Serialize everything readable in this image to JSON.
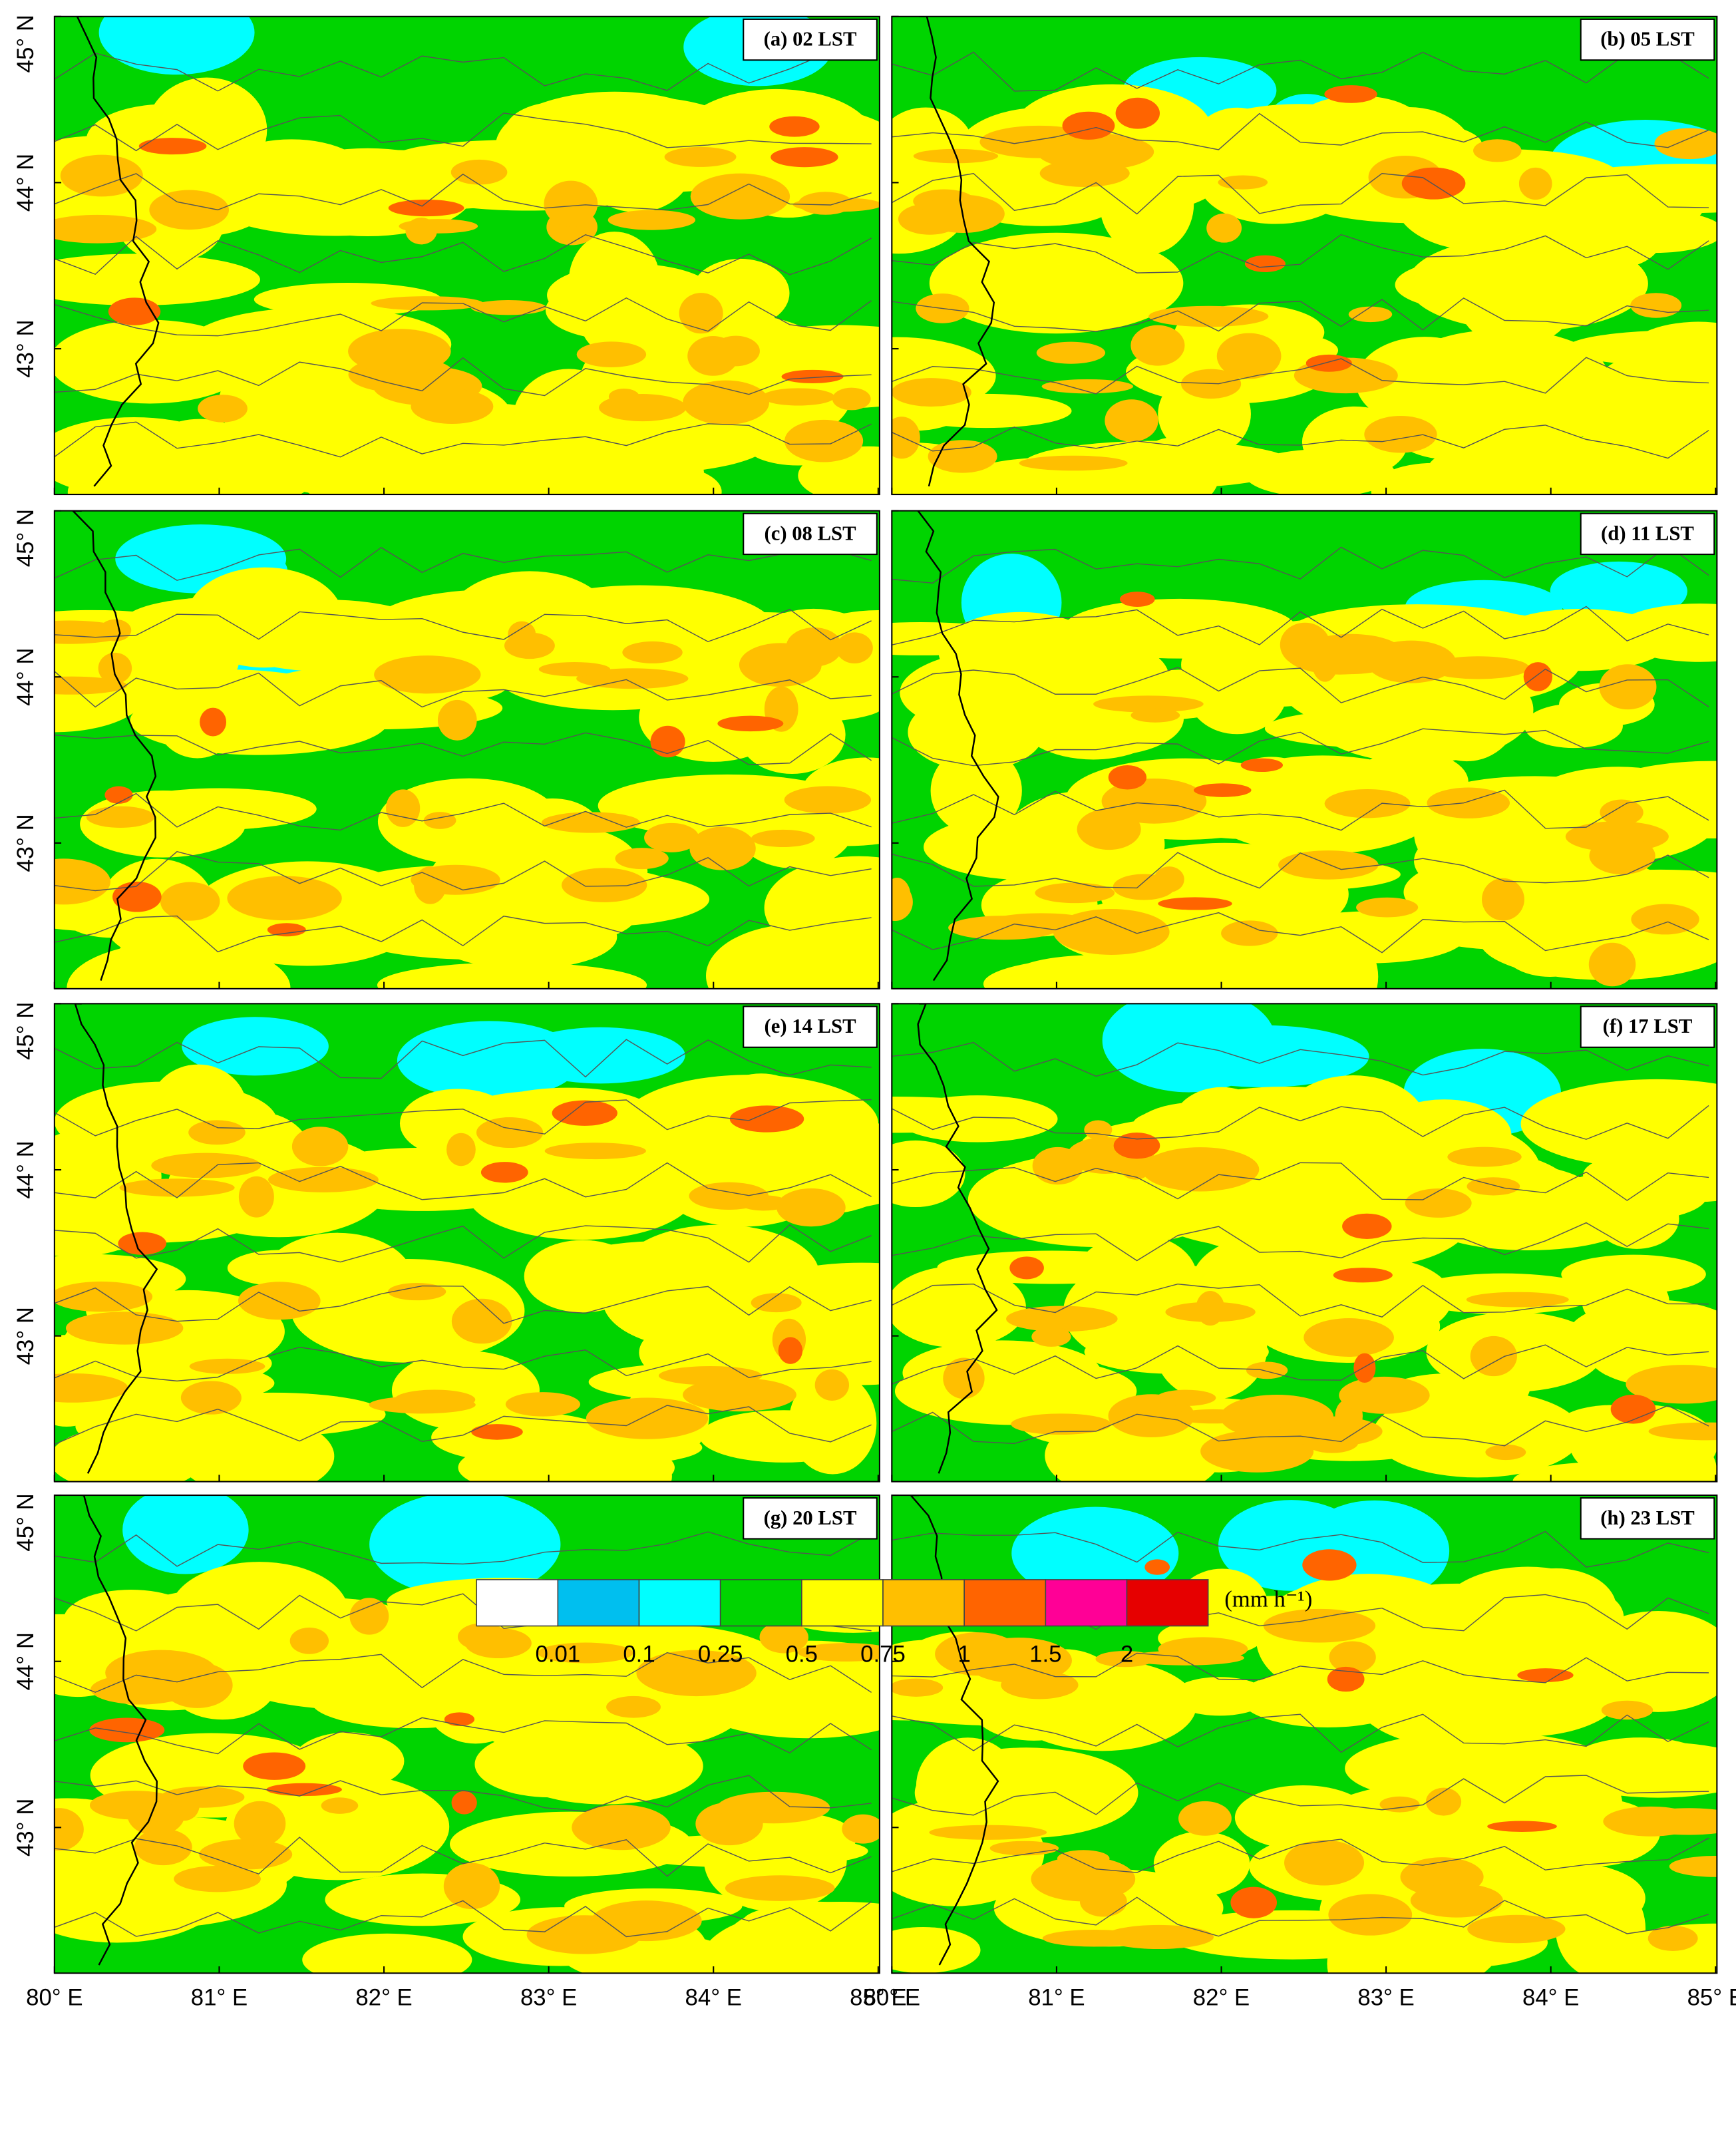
{
  "panels": [
    {
      "label": "(a) 02 LST"
    },
    {
      "label": "(b) 05 LST"
    },
    {
      "label": "(c) 08 LST"
    },
    {
      "label": "(d) 11 LST"
    },
    {
      "label": "(e) 14 LST"
    },
    {
      "label": "(f) 17 LST"
    },
    {
      "label": "(g) 20 LST"
    },
    {
      "label": "(h) 23 LST"
    }
  ],
  "x_axis": {
    "tick_labels": [
      "80° E",
      "81° E",
      "82° E",
      "83° E",
      "84° E",
      "85° E"
    ]
  },
  "y_axis": {
    "tick_labels": [
      "45° N",
      "44° N",
      "43° N"
    ]
  },
  "colorbar": {
    "levels": [
      0.01,
      0.1,
      0.25,
      0.5,
      0.75,
      1,
      1.5,
      2
    ],
    "colors": [
      "#ffffff",
      "#00bfef",
      "#00ffff",
      "#00d400",
      "#ffff00",
      "#ffbf00",
      "#ff6400",
      "#ff0096",
      "#e60000"
    ],
    "unit": "(mm h⁻¹)"
  }
}
